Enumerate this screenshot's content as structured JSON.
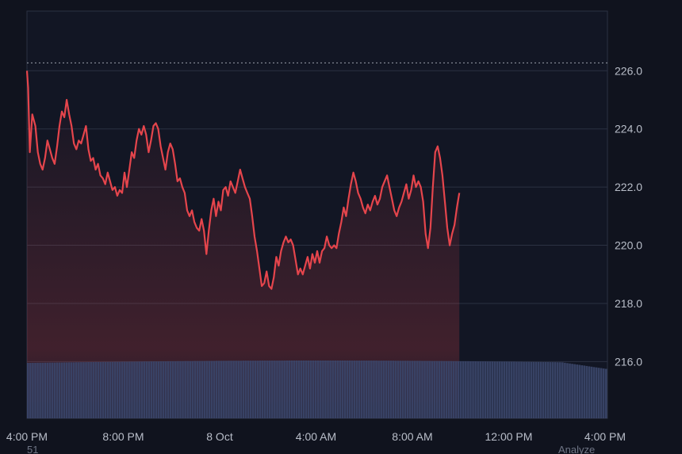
{
  "chart_data": {
    "type": "area",
    "colors": {
      "line": "#e5454c",
      "volume": "#3a4468",
      "reference_line": "#9aa0aa"
    },
    "reference_line_value": 226.27,
    "y_ticks": [
      "226.0",
      "224.0",
      "222.0",
      "220.0",
      "218.0",
      "216.0"
    ],
    "ylim": [
      214.05,
      228.05
    ],
    "x_ticks": [
      "4:00 PM",
      "8:00 PM",
      "8 Oct",
      "4:00 AM",
      "8:00 AM",
      "12:00 PM",
      "4:00 PM"
    ],
    "x_range_hours": [
      0,
      24.1
    ],
    "x_tick_hours": [
      0,
      4,
      8,
      12,
      16,
      20,
      24
    ],
    "series": [
      {
        "values": [
          [
            0.0,
            226.0
          ],
          [
            0.05,
            225.4
          ],
          [
            0.12,
            223.2
          ],
          [
            0.22,
            224.5
          ],
          [
            0.35,
            224.1
          ],
          [
            0.45,
            223.2
          ],
          [
            0.55,
            222.8
          ],
          [
            0.65,
            222.6
          ],
          [
            0.75,
            223.0
          ],
          [
            0.85,
            223.6
          ],
          [
            0.95,
            223.3
          ],
          [
            1.05,
            223.0
          ],
          [
            1.15,
            222.8
          ],
          [
            1.25,
            223.4
          ],
          [
            1.35,
            224.1
          ],
          [
            1.45,
            224.6
          ],
          [
            1.55,
            224.4
          ],
          [
            1.65,
            225.0
          ],
          [
            1.75,
            224.5
          ],
          [
            1.85,
            224.1
          ],
          [
            1.95,
            223.5
          ],
          [
            2.05,
            223.3
          ],
          [
            2.15,
            223.6
          ],
          [
            2.25,
            223.5
          ],
          [
            2.35,
            223.8
          ],
          [
            2.45,
            224.1
          ],
          [
            2.55,
            223.3
          ],
          [
            2.65,
            222.9
          ],
          [
            2.75,
            223.0
          ],
          [
            2.85,
            222.6
          ],
          [
            2.95,
            222.8
          ],
          [
            3.05,
            222.4
          ],
          [
            3.15,
            222.3
          ],
          [
            3.25,
            222.1
          ],
          [
            3.35,
            222.5
          ],
          [
            3.45,
            222.2
          ],
          [
            3.55,
            221.9
          ],
          [
            3.65,
            222.0
          ],
          [
            3.75,
            221.7
          ],
          [
            3.85,
            221.9
          ],
          [
            3.95,
            221.8
          ],
          [
            4.05,
            222.5
          ],
          [
            4.15,
            222.0
          ],
          [
            4.25,
            222.6
          ],
          [
            4.35,
            223.2
          ],
          [
            4.45,
            223.0
          ],
          [
            4.55,
            223.6
          ],
          [
            4.65,
            224.0
          ],
          [
            4.75,
            223.8
          ],
          [
            4.85,
            224.1
          ],
          [
            4.95,
            223.8
          ],
          [
            5.05,
            223.2
          ],
          [
            5.15,
            223.6
          ],
          [
            5.25,
            224.1
          ],
          [
            5.35,
            224.2
          ],
          [
            5.45,
            224.0
          ],
          [
            5.55,
            223.4
          ],
          [
            5.65,
            223.0
          ],
          [
            5.75,
            222.6
          ],
          [
            5.85,
            223.2
          ],
          [
            5.95,
            223.5
          ],
          [
            6.05,
            223.3
          ],
          [
            6.15,
            222.8
          ],
          [
            6.25,
            222.2
          ],
          [
            6.35,
            222.3
          ],
          [
            6.45,
            222.0
          ],
          [
            6.55,
            221.8
          ],
          [
            6.65,
            221.2
          ],
          [
            6.75,
            221.0
          ],
          [
            6.85,
            221.2
          ],
          [
            6.95,
            220.8
          ],
          [
            7.05,
            220.6
          ],
          [
            7.15,
            220.5
          ],
          [
            7.25,
            220.9
          ],
          [
            7.35,
            220.5
          ],
          [
            7.45,
            219.7
          ],
          [
            7.55,
            220.5
          ],
          [
            7.65,
            221.2
          ],
          [
            7.75,
            221.6
          ],
          [
            7.85,
            221.0
          ],
          [
            7.95,
            221.5
          ],
          [
            8.05,
            221.2
          ],
          [
            8.15,
            221.9
          ],
          [
            8.25,
            222.0
          ],
          [
            8.35,
            221.7
          ],
          [
            8.45,
            222.2
          ],
          [
            8.55,
            222.0
          ],
          [
            8.65,
            221.8
          ],
          [
            8.75,
            222.2
          ],
          [
            8.85,
            222.6
          ],
          [
            8.95,
            222.3
          ],
          [
            9.05,
            222.0
          ],
          [
            9.15,
            221.8
          ],
          [
            9.25,
            221.6
          ],
          [
            9.35,
            221.0
          ],
          [
            9.45,
            220.3
          ],
          [
            9.55,
            219.8
          ],
          [
            9.65,
            219.2
          ],
          [
            9.75,
            218.6
          ],
          [
            9.85,
            218.7
          ],
          [
            9.95,
            219.1
          ],
          [
            10.05,
            218.6
          ],
          [
            10.15,
            218.5
          ],
          [
            10.25,
            218.9
          ],
          [
            10.35,
            219.6
          ],
          [
            10.45,
            219.3
          ],
          [
            10.55,
            219.8
          ],
          [
            10.65,
            220.1
          ],
          [
            10.75,
            220.3
          ],
          [
            10.85,
            220.1
          ],
          [
            10.95,
            220.2
          ],
          [
            11.05,
            220.0
          ],
          [
            11.15,
            219.5
          ],
          [
            11.25,
            219.0
          ],
          [
            11.35,
            219.2
          ],
          [
            11.45,
            219.0
          ],
          [
            11.55,
            219.3
          ],
          [
            11.65,
            219.6
          ],
          [
            11.75,
            219.2
          ],
          [
            11.85,
            219.7
          ],
          [
            11.95,
            219.4
          ],
          [
            12.05,
            219.8
          ],
          [
            12.15,
            219.4
          ],
          [
            12.25,
            219.8
          ],
          [
            12.35,
            219.9
          ],
          [
            12.45,
            220.3
          ],
          [
            12.55,
            220.0
          ],
          [
            12.65,
            219.9
          ],
          [
            12.75,
            220.0
          ],
          [
            12.85,
            219.9
          ],
          [
            12.95,
            220.4
          ],
          [
            13.05,
            220.8
          ],
          [
            13.15,
            221.3
          ],
          [
            13.25,
            221.0
          ],
          [
            13.35,
            221.6
          ],
          [
            13.45,
            222.1
          ],
          [
            13.55,
            222.5
          ],
          [
            13.65,
            222.2
          ],
          [
            13.75,
            221.8
          ],
          [
            13.85,
            221.6
          ],
          [
            13.95,
            221.3
          ],
          [
            14.05,
            221.1
          ],
          [
            14.15,
            221.4
          ],
          [
            14.25,
            221.2
          ],
          [
            14.35,
            221.5
          ],
          [
            14.45,
            221.7
          ],
          [
            14.55,
            221.4
          ],
          [
            14.65,
            221.6
          ],
          [
            14.75,
            222.0
          ],
          [
            14.85,
            222.2
          ],
          [
            14.95,
            222.4
          ],
          [
            15.05,
            222.0
          ],
          [
            15.15,
            221.6
          ],
          [
            15.25,
            221.2
          ],
          [
            15.35,
            221.0
          ],
          [
            15.45,
            221.3
          ],
          [
            15.55,
            221.5
          ],
          [
            15.65,
            221.8
          ],
          [
            15.75,
            222.1
          ],
          [
            15.85,
            221.6
          ],
          [
            15.95,
            221.9
          ],
          [
            16.05,
            222.4
          ],
          [
            16.15,
            222.0
          ],
          [
            16.25,
            222.2
          ],
          [
            16.35,
            222.0
          ],
          [
            16.45,
            221.5
          ],
          [
            16.55,
            220.4
          ],
          [
            16.65,
            219.9
          ],
          [
            16.75,
            220.6
          ],
          [
            16.85,
            222.0
          ],
          [
            16.95,
            223.2
          ],
          [
            17.05,
            223.4
          ],
          [
            17.15,
            223.0
          ],
          [
            17.25,
            222.4
          ],
          [
            17.35,
            221.5
          ],
          [
            17.45,
            220.6
          ],
          [
            17.55,
            220.0
          ],
          [
            17.65,
            220.4
          ],
          [
            17.75,
            220.7
          ],
          [
            17.85,
            221.3
          ],
          [
            17.95,
            221.8
          ]
        ]
      }
    ],
    "volume_note": "uniform volume bars along the bottom"
  },
  "footer": {
    "left_text": "51",
    "right_text": "Analyze"
  }
}
